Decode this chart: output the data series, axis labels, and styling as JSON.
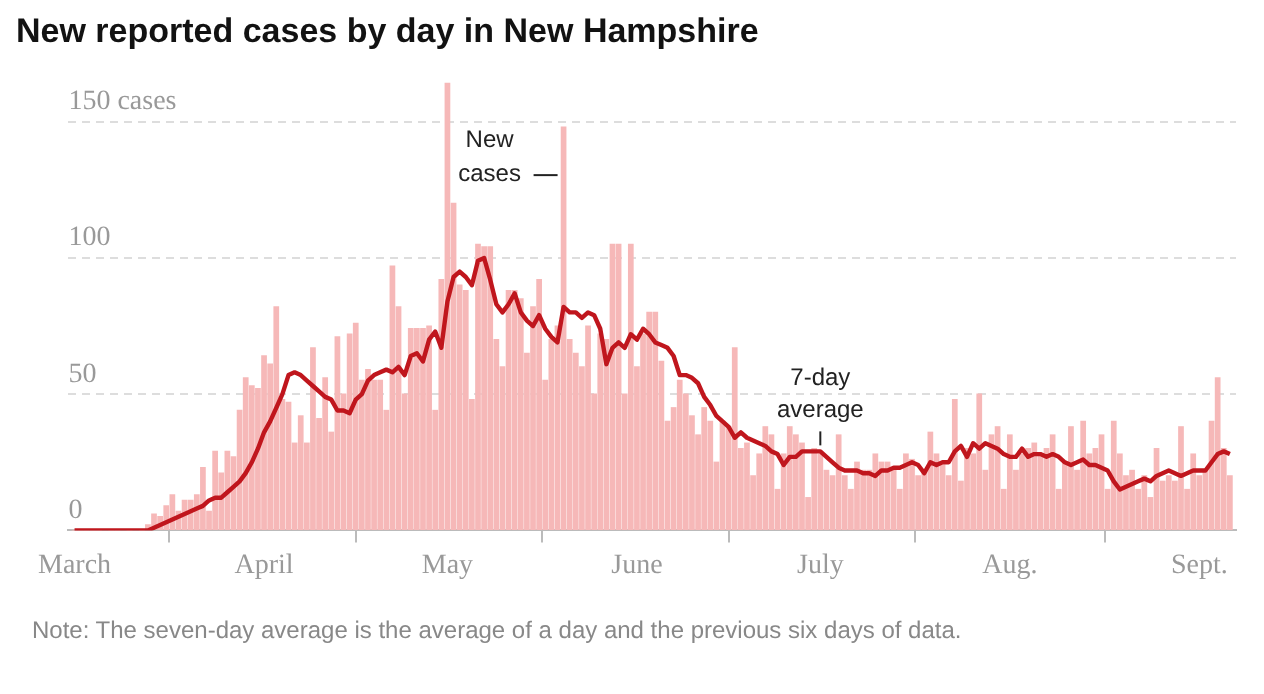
{
  "chart_data": {
    "type": "bar",
    "title": "New reported cases by day in New Hampshire",
    "x": [
      "--03-01",
      "--03-02",
      "--03-03",
      "--03-04",
      "--03-05",
      "--03-06",
      "--03-07",
      "--03-08",
      "--03-09",
      "--03-10",
      "--03-11",
      "--03-12",
      "--03-13",
      "--03-14",
      "--03-15",
      "--03-16",
      "--03-17",
      "--03-18",
      "--03-19",
      "--03-20",
      "--03-21",
      "--03-22",
      "--03-23",
      "--03-24",
      "--03-25",
      "--03-26",
      "--03-27",
      "--03-28",
      "--03-29",
      "--03-30",
      "--03-31",
      "--04-01",
      "--04-02",
      "--04-03",
      "--04-04",
      "--04-05",
      "--04-06",
      "--04-07",
      "--04-08",
      "--04-09",
      "--04-10",
      "--04-11",
      "--04-12",
      "--04-13",
      "--04-14",
      "--04-15",
      "--04-16",
      "--04-17",
      "--04-18",
      "--04-19",
      "--04-20",
      "--04-21",
      "--04-22",
      "--04-23",
      "--04-24",
      "--04-25",
      "--04-26",
      "--04-27",
      "--04-28",
      "--04-29",
      "--04-30",
      "--05-01",
      "--05-02",
      "--05-03",
      "--05-04",
      "--05-05",
      "--05-06",
      "--05-07",
      "--05-08",
      "--05-09",
      "--05-10",
      "--05-11",
      "--05-12",
      "--05-13",
      "--05-14",
      "--05-15",
      "--05-16",
      "--05-17",
      "--05-18",
      "--05-19",
      "--05-20",
      "--05-21",
      "--05-22",
      "--05-23",
      "--05-24",
      "--05-25",
      "--05-26",
      "--05-27",
      "--05-28",
      "--05-29",
      "--05-30",
      "--05-31",
      "--06-01",
      "--06-02",
      "--06-03",
      "--06-04",
      "--06-05",
      "--06-06",
      "--06-07",
      "--06-08",
      "--06-09",
      "--06-10",
      "--06-11",
      "--06-12",
      "--06-13",
      "--06-14",
      "--06-15",
      "--06-16",
      "--06-17",
      "--06-18",
      "--06-19",
      "--06-20",
      "--06-21",
      "--06-22",
      "--06-23",
      "--06-24",
      "--06-25",
      "--06-26",
      "--06-27",
      "--06-28",
      "--06-29",
      "--06-30",
      "--07-01",
      "--07-02",
      "--07-03",
      "--07-04",
      "--07-05",
      "--07-06",
      "--07-07",
      "--07-08",
      "--07-09",
      "--07-10",
      "--07-11",
      "--07-12",
      "--07-13",
      "--07-14",
      "--07-15",
      "--07-16",
      "--07-17",
      "--07-18",
      "--07-19",
      "--07-20",
      "--07-21",
      "--07-22",
      "--07-23",
      "--07-24",
      "--07-25",
      "--07-26",
      "--07-27",
      "--07-28",
      "--07-29",
      "--07-30",
      "--07-31",
      "--08-01",
      "--08-02",
      "--08-03",
      "--08-04",
      "--08-05",
      "--08-06",
      "--08-07",
      "--08-08",
      "--08-09",
      "--08-10",
      "--08-11",
      "--08-12",
      "--08-13",
      "--08-14",
      "--08-15",
      "--08-16",
      "--08-17",
      "--08-18",
      "--08-19",
      "--08-20",
      "--08-21",
      "--08-22",
      "--08-23",
      "--08-24",
      "--08-25",
      "--08-26",
      "--08-27",
      "--08-28",
      "--08-29",
      "--08-30",
      "--08-31",
      "--09-01",
      "--09-02",
      "--09-03",
      "--09-04",
      "--09-05",
      "--09-06"
    ],
    "series": [
      {
        "color": "#f6b8b8",
        "values": [
          0,
          0,
          0,
          0,
          0,
          null,
          0,
          0,
          null,
          0,
          null,
          0,
          2,
          6,
          5,
          9,
          13,
          7,
          11,
          11,
          13,
          23,
          7,
          29,
          21,
          29,
          27,
          44,
          56,
          53,
          52,
          64,
          61,
          82,
          48,
          47,
          32,
          42,
          32,
          67,
          41,
          56,
          36,
          71,
          50,
          72,
          76,
          55,
          59,
          55,
          55,
          44,
          97,
          82,
          50,
          74,
          74,
          74,
          75,
          44,
          92,
          164,
          120,
          90,
          88,
          48,
          105,
          104,
          104,
          70,
          60,
          88,
          88,
          85,
          65,
          82,
          92,
          55,
          70,
          75,
          148,
          70,
          65,
          60,
          75,
          50,
          72,
          70,
          105,
          105,
          50,
          105,
          60,
          72,
          80,
          80,
          62,
          40,
          45,
          55,
          50,
          42,
          35,
          45,
          40,
          25,
          40,
          38,
          67,
          30,
          32,
          20,
          28,
          38,
          35,
          15,
          28,
          38,
          35,
          32,
          12,
          30,
          28,
          22,
          20,
          35,
          20,
          15,
          25,
          22,
          22,
          28,
          25,
          25,
          22,
          15,
          28,
          26,
          20,
          22,
          36,
          28,
          24,
          20,
          48,
          18,
          30,
          28,
          50,
          22,
          35,
          38,
          15,
          35,
          22,
          28,
          30,
          32,
          28,
          30,
          35,
          15,
          25,
          38,
          22,
          40,
          28,
          30,
          35,
          15,
          40,
          28,
          20,
          22,
          15,
          20,
          12,
          30,
          18,
          20,
          18,
          38,
          15,
          28,
          20,
          22,
          40,
          56,
          30,
          20
        ]
      },
      {
        "type": "line",
        "color": "#c0161d",
        "values": [
          0,
          0,
          0,
          0,
          0,
          0,
          0,
          0,
          0,
          0,
          0,
          0,
          0,
          1,
          2,
          3,
          4,
          5,
          6,
          7,
          8,
          9,
          11,
          12,
          12,
          14,
          16,
          18,
          21,
          25,
          30,
          36,
          40,
          45,
          50,
          57,
          58,
          57,
          55,
          53,
          51,
          49,
          48,
          44,
          44,
          43,
          48,
          50,
          55,
          57,
          58,
          59,
          58,
          60,
          57,
          64,
          65,
          62,
          70,
          73,
          67,
          84,
          93,
          95,
          93,
          90,
          99,
          100,
          92,
          83,
          80,
          83,
          87,
          80,
          77,
          75,
          79,
          74,
          71,
          69,
          82,
          80,
          80,
          78,
          80,
          79,
          74,
          61,
          67,
          69,
          67,
          72,
          70,
          74,
          72,
          69,
          68,
          67,
          64,
          57,
          57,
          56,
          54,
          49,
          46,
          42,
          40,
          38,
          34,
          36,
          34,
          33,
          32,
          31,
          29,
          28,
          24,
          27,
          27,
          29,
          29,
          29,
          29,
          27,
          25,
          23,
          22,
          22,
          22,
          21,
          21,
          20,
          22,
          22,
          23,
          23,
          24,
          25,
          24,
          21,
          25,
          24,
          25,
          25,
          29,
          31,
          27,
          32,
          30,
          32,
          31,
          30,
          28,
          27,
          27,
          30,
          27,
          28,
          28,
          27,
          28,
          27,
          25,
          24,
          25,
          26,
          24,
          24,
          23,
          22,
          18,
          15,
          16,
          17,
          18,
          19,
          18,
          20,
          21,
          22,
          21,
          20,
          21,
          22,
          22,
          22,
          25,
          28,
          29,
          28
        ]
      }
    ],
    "xlim": [
      "--02-29",
      "--09-07"
    ],
    "xticks": [
      {
        "value": "--03-01",
        "label": "March"
      },
      {
        "value": "--04-01",
        "label": "April"
      },
      {
        "value": "--05-01",
        "label": "May"
      },
      {
        "value": "--06-01",
        "label": "June"
      },
      {
        "value": "--07-01",
        "label": "July"
      },
      {
        "value": "--08-01",
        "label": "Aug."
      },
      {
        "value": "--09-01",
        "label": "Sept."
      }
    ],
    "ylim": [
      0,
      165
    ],
    "yticks": [
      0,
      50,
      100,
      {
        "value": 150,
        "label": "150 cases"
      }
    ],
    "grid": "y",
    "legend": false,
    "marker": "none",
    "line_style": "solid",
    "annotations": [
      {
        "text": "New cases",
        "x": "--05-20",
        "y": 148
      },
      {
        "text": "7-day average",
        "x": "--07-01",
        "y": 29
      },
      "Note: The seven-day average is the average of a day and the previous six days of data."
    ]
  }
}
